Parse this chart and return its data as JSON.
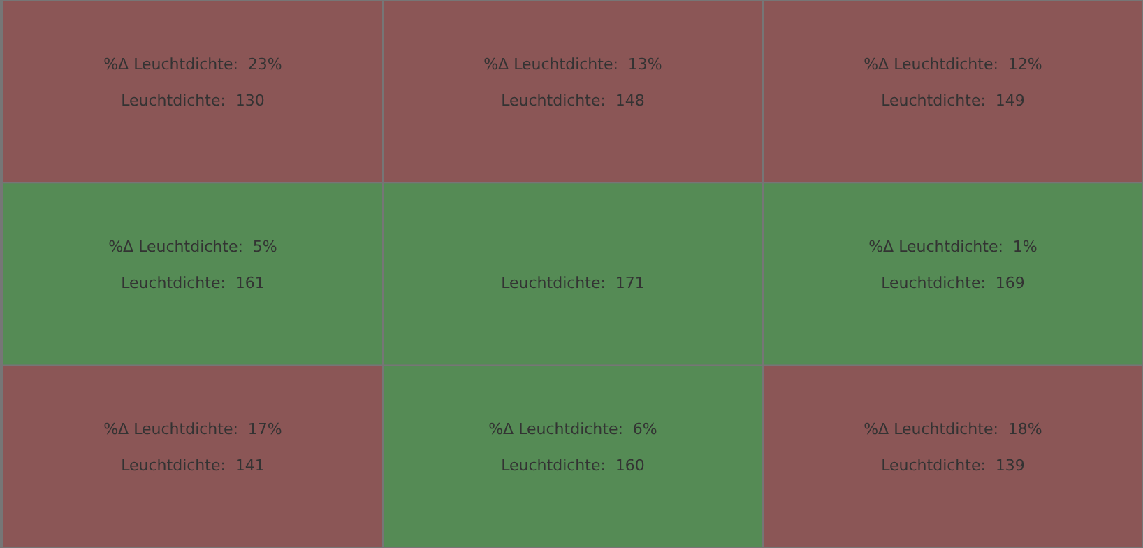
{
  "chart_data": {
    "type": "heatmap",
    "categories": [
      null,
      null,
      null
    ],
    "y_categories": [
      null,
      null,
      null
    ],
    "cells": [
      [
        130,
        148,
        149
      ],
      [
        161,
        171,
        169
      ],
      [
        141,
        160,
        139
      ]
    ],
    "cell_labels": [
      [
        "Leuchtdichte:  130",
        "Leuchtdichte:  148",
        "Leuchtdichte:  149"
      ],
      [
        "Leuchtdichte:  161",
        "Leuchtdichte:  171",
        "Leuchtdichte:  169"
      ],
      [
        "Leuchtdichte:  141",
        "Leuchtdichte:  160",
        "Leuchtdichte:  139"
      ]
    ],
    "annotations": [
      "%Δ Leuchtdichte:  23%",
      "%Δ Leuchtdichte:  13%",
      "%Δ Leuchtdichte:  12%",
      "%Δ Leuchtdichte:  5%",
      null,
      "%Δ Leuchtdichte:  1%",
      "%Δ Leuchtdichte:  17%",
      "%Δ Leuchtdichte:  6%",
      "%Δ Leuchtdichte:  18%"
    ],
    "colors": [
      [
        "#8b5656",
        "#8b5656",
        "#8b5656"
      ],
      [
        "#558b55",
        "#558b55",
        "#558b55"
      ],
      [
        "#8b5656",
        "#558b55",
        "#8b5656"
      ]
    ]
  }
}
